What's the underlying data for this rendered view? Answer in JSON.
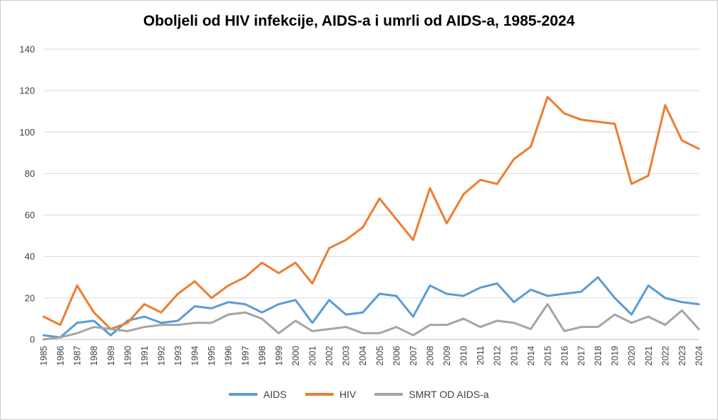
{
  "chart_data": {
    "type": "line",
    "title": "Oboljeli od HIV infekcije, AIDS-a i umrli od AIDS-a, 1985-2024",
    "x": [
      "1985",
      "1986",
      "1987",
      "1988",
      "1989",
      "1990",
      "1991",
      "1992",
      "1993",
      "1994",
      "1995",
      "1996",
      "1997",
      "1998",
      "1999",
      "2000",
      "2001",
      "2002",
      "2003",
      "2004",
      "2005",
      "2006",
      "2007",
      "2008",
      "2009",
      "2010",
      "2011",
      "2012",
      "2013",
      "2014",
      "2015",
      "2016",
      "2017",
      "2018",
      "2019",
      "2020",
      "2021",
      "2022",
      "2023",
      "2024"
    ],
    "series": [
      {
        "name": "AIDS",
        "color": "#5B9BD5",
        "values": [
          2,
          1,
          8,
          9,
          2,
          9,
          11,
          8,
          9,
          16,
          15,
          18,
          17,
          13,
          17,
          19,
          8,
          19,
          12,
          13,
          22,
          21,
          11,
          26,
          22,
          21,
          25,
          27,
          18,
          24,
          21,
          22,
          23,
          30,
          20,
          12,
          26,
          20,
          18,
          17
        ]
      },
      {
        "name": "HIV",
        "color": "#ED7D31",
        "values": [
          11,
          7,
          26,
          13,
          5,
          8,
          17,
          13,
          22,
          28,
          20,
          26,
          30,
          37,
          32,
          37,
          27,
          44,
          48,
          54,
          68,
          58,
          48,
          73,
          56,
          70,
          77,
          75,
          87,
          93,
          117,
          109,
          106,
          105,
          104,
          75,
          79,
          113,
          96,
          92
        ]
      },
      {
        "name": "SMRT OD AIDS-a",
        "color": "#A5A5A5",
        "values": [
          0,
          1,
          3,
          6,
          5,
          4,
          6,
          7,
          7,
          8,
          8,
          12,
          13,
          10,
          3,
          9,
          4,
          5,
          6,
          3,
          3,
          6,
          2,
          7,
          7,
          10,
          6,
          9,
          8,
          5,
          17,
          4,
          6,
          6,
          12,
          8,
          11,
          7,
          14,
          5
        ]
      }
    ],
    "ylim": [
      0,
      140
    ],
    "ytick_step": 20,
    "grid": true,
    "legend_position": "bottom",
    "colors": {
      "gridline": "#d9d9d9",
      "axis_line": "#bfbfbf",
      "title": "#000000",
      "tick_text": "#404040"
    }
  }
}
